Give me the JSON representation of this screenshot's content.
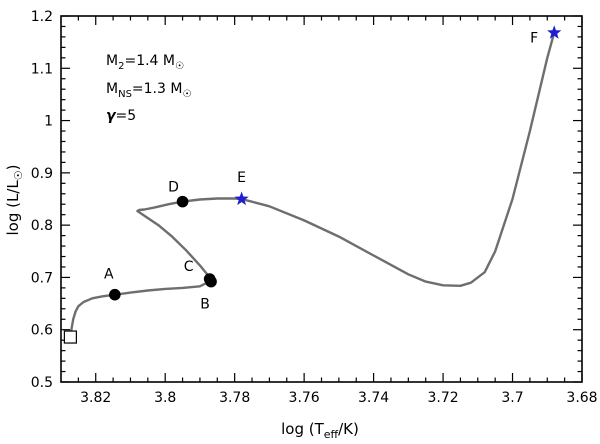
{
  "chart_data": {
    "type": "line",
    "x_axis": {
      "label_main": "log (T",
      "label_sub": "eff",
      "label_tail": "/K)",
      "lim": [
        3.83,
        3.68
      ],
      "ticks": [
        "3.82",
        "3.8",
        "3.78",
        "3.76",
        "3.74",
        "3.72",
        "3.7",
        "3.68"
      ],
      "tick_values": [
        3.82,
        3.8,
        3.78,
        3.76,
        3.74,
        3.72,
        3.7,
        3.68
      ],
      "minor_step": 0.005
    },
    "y_axis": {
      "label_main": "log (L/L",
      "label_sun": "☉",
      "label_tail": ")",
      "lim": [
        0.5,
        1.2
      ],
      "ticks": [
        "0.5",
        "0.6",
        "0.7",
        "0.8",
        "0.9",
        "1",
        "1.1",
        "1.2"
      ],
      "tick_values": [
        0.5,
        0.6,
        0.7,
        0.8,
        0.9,
        1.0,
        1.1,
        1.2
      ],
      "minor_step": 0.02
    },
    "annotations": [
      {
        "main": "M",
        "sub": "2",
        "tail": "=1.4 M",
        "sun": "☉"
      },
      {
        "main": "M",
        "sub": "NS",
        "tail": "=1.3 M",
        "sun": "☉"
      },
      {
        "main": "γ",
        "sub": "",
        "tail": "=5",
        "sun": ""
      }
    ],
    "track": {
      "name": "evolutionary track",
      "color": "#6e6e6e",
      "x": [
        3.8273,
        3.827,
        3.8265,
        3.8258,
        3.825,
        3.8235,
        3.821,
        3.818,
        3.8145,
        3.81,
        3.805,
        3.8,
        3.795,
        3.79,
        3.787,
        3.7868,
        3.79,
        3.794,
        3.798,
        3.802,
        3.806,
        3.808,
        3.8075,
        3.806,
        3.803,
        3.799,
        3.795,
        3.79,
        3.785,
        3.78,
        3.778,
        3.77,
        3.76,
        3.75,
        3.74,
        3.73,
        3.725,
        3.72,
        3.715,
        3.712,
        3.708,
        3.705,
        3.7,
        3.695,
        3.69,
        3.688
      ],
      "y": [
        0.588,
        0.6,
        0.62,
        0.635,
        0.645,
        0.653,
        0.66,
        0.664,
        0.667,
        0.671,
        0.675,
        0.678,
        0.68,
        0.683,
        0.693,
        0.697,
        0.723,
        0.752,
        0.778,
        0.8,
        0.818,
        0.827,
        0.829,
        0.83,
        0.834,
        0.84,
        0.845,
        0.849,
        0.851,
        0.851,
        0.85,
        0.836,
        0.809,
        0.778,
        0.742,
        0.706,
        0.692,
        0.685,
        0.684,
        0.69,
        0.71,
        0.75,
        0.85,
        0.98,
        1.12,
        1.168
      ]
    },
    "start_marker": {
      "label": "",
      "x": 3.8273,
      "y": 0.586,
      "shape": "open-square"
    },
    "points": [
      {
        "label": "A",
        "x": 3.8145,
        "y": 0.667,
        "shape": "dot"
      },
      {
        "label": "B",
        "x": 3.7868,
        "y": 0.692,
        "shape": "dot"
      },
      {
        "label": "C",
        "x": 3.7872,
        "y": 0.697,
        "shape": "dot"
      },
      {
        "label": "D",
        "x": 3.795,
        "y": 0.845,
        "shape": "dot"
      },
      {
        "label": "E",
        "x": 3.778,
        "y": 0.85,
        "shape": "star"
      },
      {
        "label": "F",
        "x": 3.688,
        "y": 1.168,
        "shape": "star"
      }
    ],
    "colors": {
      "dot": "#000000",
      "star": "#1f1fcf",
      "axis": "#000000"
    }
  }
}
